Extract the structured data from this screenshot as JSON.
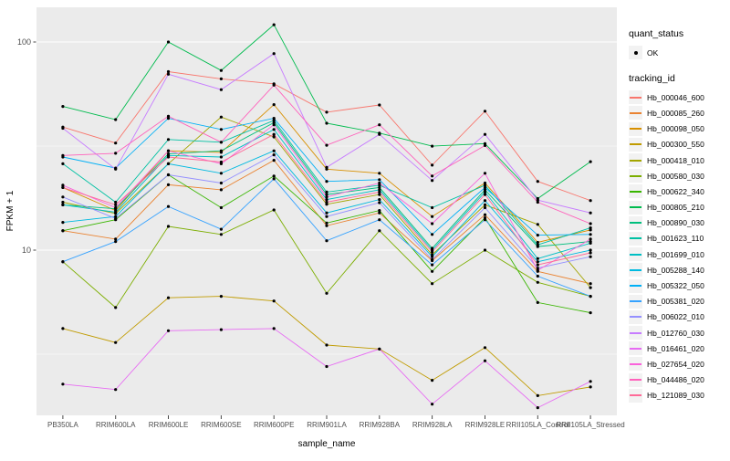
{
  "figure": {
    "y_axis": {
      "title": "FPKM + 1",
      "tick_labels": [
        "100",
        "10"
      ],
      "tick_values": [
        100,
        10
      ]
    },
    "x_axis": {
      "title": "sample_name"
    },
    "legends": {
      "quant_status": {
        "title": "quant_status",
        "entries": [
          {
            "label": "OK",
            "marker": "point",
            "color": "#000000"
          }
        ]
      },
      "tracking_id": {
        "title": "tracking_id"
      }
    },
    "colors": {
      "panel_background": "#EBEBEB",
      "gridline": "#FFFFFF",
      "axis_text": "#4D4D4D",
      "tick_mark": "#333333",
      "point": "#000000",
      "legend_key_background": "#F2F2F2"
    }
  },
  "chart_data": {
    "type": "line",
    "title": "",
    "xlabel": "sample_name",
    "ylabel": "FPKM + 1",
    "y_scale": "log10",
    "ylim": [
      1.6,
      147
    ],
    "y_major_gridlines": [
      10,
      100
    ],
    "y_minor_gridlines": [
      3.1623,
      31.623
    ],
    "grid": true,
    "legend_position": "right",
    "point_marker": {
      "shape": "circle",
      "color": "#000000"
    },
    "categories": [
      "PB350LA",
      "RRIM600LA",
      "RRIM600LE",
      "RRIM600SE",
      "RRIM600PE",
      "RRIM901LA",
      "RRIM928BA",
      "RRIM928LA",
      "RRIM928LE",
      "RRII105LA_Control",
      "RRII105LA_Stressed"
    ],
    "series": [
      {
        "name": "Hb_000046_600",
        "color": "#F8766D",
        "values": [
          39,
          32.7,
          72,
          66.5,
          63,
          46,
          49.8,
          25.6,
          46.5,
          21.4,
          17.3
        ]
      },
      {
        "name": "Hb_000085_260",
        "color": "#EA8331",
        "values": [
          12.4,
          11.3,
          20.6,
          19.5,
          27,
          13.1,
          15.1,
          8.9,
          14.8,
          7.9,
          6.9
        ]
      },
      {
        "name": "Hb_000098_050",
        "color": "#D89000",
        "values": [
          20,
          15.5,
          30,
          29.5,
          50,
          24.5,
          23.4,
          14.5,
          21,
          10.9,
          12.5
        ]
      },
      {
        "name": "Hb_000300_550",
        "color": "#C09B00",
        "values": [
          4.2,
          3.6,
          5.9,
          6.0,
          5.7,
          3.5,
          3.35,
          2.37,
          3.4,
          2.0,
          2.2
        ]
      },
      {
        "name": "Hb_000418_010",
        "color": "#A3A500",
        "values": [
          17,
          15,
          26,
          43.6,
          35,
          16.6,
          18.5,
          9.5,
          16.5,
          13.3,
          6.6
        ]
      },
      {
        "name": "Hb_000580_030",
        "color": "#7CAE00",
        "values": [
          8.8,
          5.3,
          13,
          11.9,
          15.6,
          6.2,
          12.4,
          6.9,
          10,
          7.0,
          6.0
        ]
      },
      {
        "name": "Hb_000622_340",
        "color": "#39B600",
        "values": [
          12.4,
          14,
          23,
          16,
          22.7,
          13.5,
          15.5,
          7.9,
          14.3,
          5.6,
          5.0
        ]
      },
      {
        "name": "Hb_000805_210",
        "color": "#00BB4E",
        "values": [
          49,
          42.4,
          100,
          73,
          121,
          40.7,
          36.5,
          31.6,
          32.5,
          17.7,
          26.6
        ]
      },
      {
        "name": "Hb_000890_030",
        "color": "#00BF7D",
        "values": [
          16.5,
          15.8,
          29,
          30,
          41,
          18.5,
          20,
          10.2,
          19.5,
          10.4,
          11
        ]
      },
      {
        "name": "Hb_001623_110",
        "color": "#00C1A3",
        "values": [
          26,
          17,
          34,
          33,
          42,
          19,
          20.5,
          16,
          20.5,
          10.6,
          12.8
        ]
      },
      {
        "name": "Hb_001699_010",
        "color": "#00BFC4",
        "values": [
          16.5,
          15.2,
          28.5,
          28,
          38,
          17.5,
          19.5,
          10,
          19,
          9.1,
          10.8
        ]
      },
      {
        "name": "Hb_005288_140",
        "color": "#00BAE0",
        "values": [
          13.6,
          14.5,
          26,
          23.4,
          30,
          15.1,
          17.5,
          9.3,
          17.3,
          8.8,
          10
        ]
      },
      {
        "name": "Hb_005322_050",
        "color": "#00B0F6",
        "values": [
          28,
          24.8,
          43,
          38,
          43,
          21.4,
          21.8,
          11.9,
          20,
          11.8,
          11.9
        ]
      },
      {
        "name": "Hb_005381_020",
        "color": "#35A2FF",
        "values": [
          8.8,
          11,
          16.2,
          12.6,
          22,
          11.1,
          14,
          8.5,
          14,
          7.5,
          6.0
        ]
      },
      {
        "name": "Hb_006022_010",
        "color": "#9590FF",
        "values": [
          18,
          14.2,
          23,
          21,
          28.7,
          14.5,
          16.9,
          9.0,
          16,
          8.2,
          9.3
        ]
      },
      {
        "name": "Hb_012760_030",
        "color": "#C77CFF",
        "values": [
          38.5,
          24.5,
          70,
          59,
          88,
          25,
          36,
          21.6,
          36,
          17.4,
          15.1
        ]
      },
      {
        "name": "Hb_016461_020",
        "color": "#E76BF3",
        "values": [
          2.27,
          2.14,
          4.1,
          4.15,
          4.2,
          2.76,
          3.35,
          1.82,
          2.94,
          1.75,
          2.34
        ]
      },
      {
        "name": "Hb_027654_020",
        "color": "#FA62DB",
        "values": [
          20.5,
          16,
          30,
          26,
          40,
          18,
          21,
          13.4,
          23.4,
          8.0,
          11.3
        ]
      },
      {
        "name": "Hb_044486_020",
        "color": "#FF62BC",
        "values": [
          28.5,
          29.2,
          44,
          33,
          62,
          31.9,
          40,
          22.7,
          31.8,
          17,
          13.4
        ]
      },
      {
        "name": "Hb_121089_030",
        "color": "#FF6A98",
        "values": [
          20,
          16.5,
          28,
          26.5,
          36,
          17,
          19,
          9.8,
          18.5,
          8.5,
          9.7
        ]
      }
    ]
  }
}
